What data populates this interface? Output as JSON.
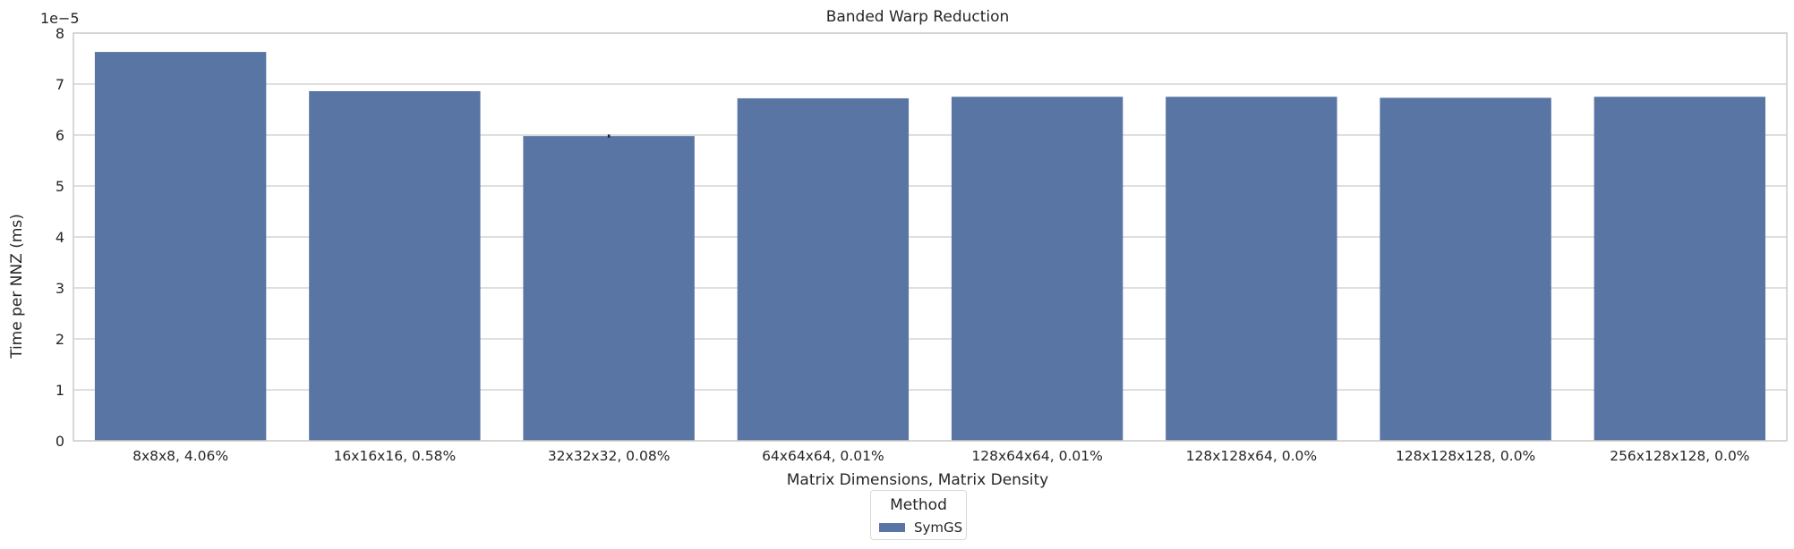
{
  "chart_data": {
    "type": "bar",
    "title": "Banded Warp Reduction",
    "xlabel": "Matrix Dimensions, Matrix Density",
    "ylabel": "Time per NNZ (ms)",
    "y_offset_label": "1e−5",
    "categories": [
      "8x8x8, 4.06%",
      "16x16x16, 0.58%",
      "32x32x32, 0.08%",
      "64x64x64, 0.01%",
      "128x64x64, 0.01%",
      "128x128x64, 0.0%",
      "128x128x128, 0.0%",
      "256x128x128, 0.0%"
    ],
    "series": [
      {
        "name": "SymGS",
        "color": "#5975a4",
        "values": [
          7.63,
          6.86,
          5.98,
          6.72,
          6.75,
          6.75,
          6.73,
          6.75
        ],
        "error": [
          0,
          0,
          0.03,
          0,
          0,
          0,
          0,
          0
        ]
      }
    ],
    "value_scale": "1e-5",
    "ylim": [
      0,
      8
    ],
    "yticks": [
      "0",
      "1",
      "2",
      "3",
      "4",
      "5",
      "6",
      "7",
      "8"
    ],
    "grid": true,
    "legend": {
      "title": "Method",
      "placement": "bottom-center"
    }
  }
}
